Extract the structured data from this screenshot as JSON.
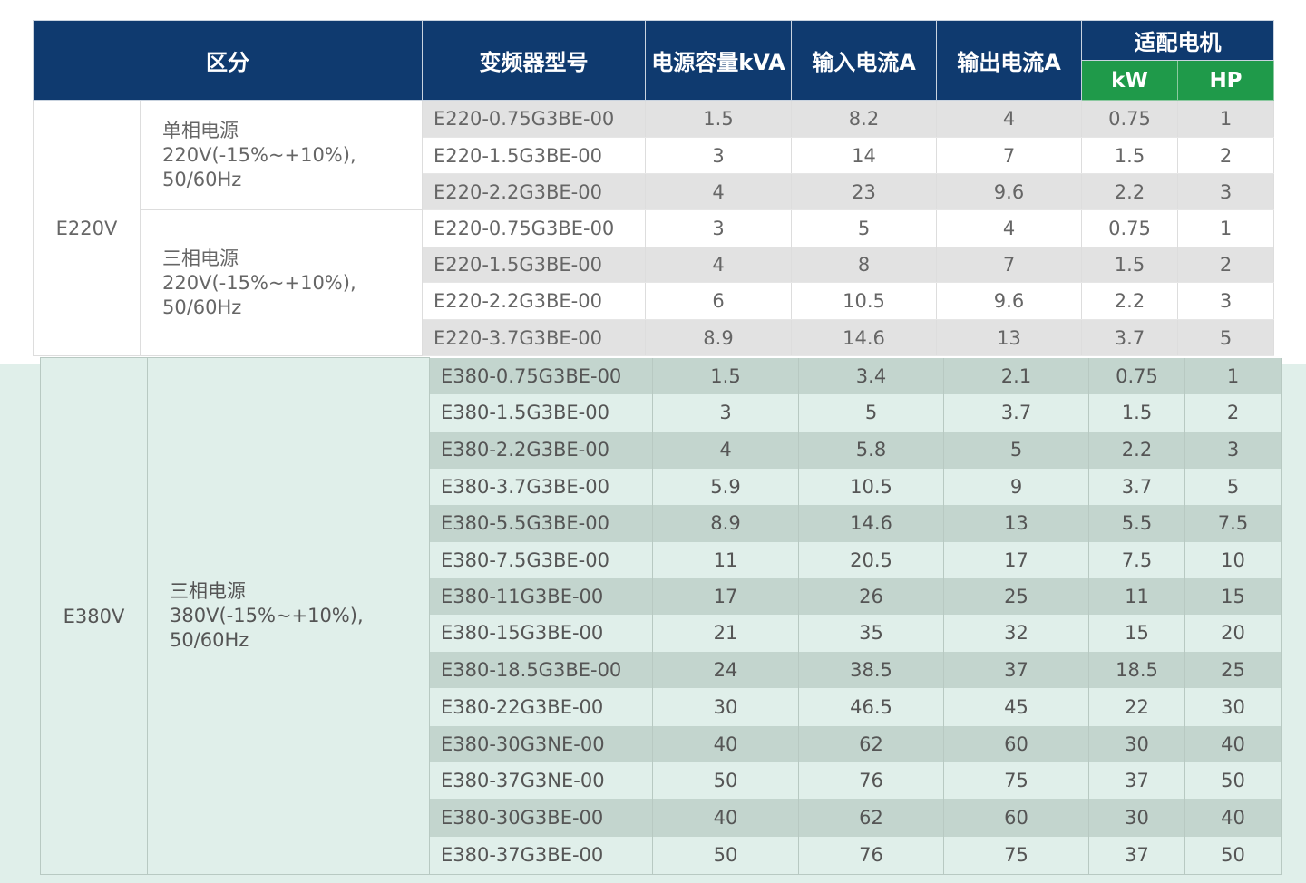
{
  "header": {
    "col_category": "区分",
    "col_model": "变频器型号",
    "col_capacity": "电源容量kVA",
    "col_input": "输入电流A",
    "col_output": "输出电流A",
    "col_motor": "适配电机",
    "col_kw": "kW",
    "col_hp": "HP"
  },
  "groups": [
    {
      "label": "E220V",
      "supplies": [
        {
          "name": "单相电源",
          "spec": "220V(-15%~+10%), 50/60Hz",
          "rows": [
            [
              "E220-0.75G3BE-00",
              "1.5",
              "8.2",
              "4",
              "0.75",
              "1"
            ],
            [
              "E220-1.5G3BE-00",
              "3",
              "14",
              "7",
              "1.5",
              "2"
            ],
            [
              "E220-2.2G3BE-00",
              "4",
              "23",
              "9.6",
              "2.2",
              "3"
            ]
          ]
        },
        {
          "name": "三相电源",
          "spec": "220V(-15%~+10%), 50/60Hz",
          "rows": [
            [
              "E220-0.75G3BE-00",
              "3",
              "5",
              "4",
              "0.75",
              "1"
            ],
            [
              "E220-1.5G3BE-00",
              "4",
              "8",
              "7",
              "1.5",
              "2"
            ],
            [
              "E220-2.2G3BE-00",
              "6",
              "10.5",
              "9.6",
              "2.2",
              "3"
            ],
            [
              "E220-3.7G3BE-00",
              "8.9",
              "14.6",
              "13",
              "3.7",
              "5"
            ]
          ]
        }
      ]
    },
    {
      "label": "E380V",
      "supplies": [
        {
          "name": "三相电源",
          "spec": "380V(-15%~+10%), 50/60Hz",
          "rows": [
            [
              "E380-0.75G3BE-00",
              "1.5",
              "3.4",
              "2.1",
              "0.75",
              "1"
            ],
            [
              "E380-1.5G3BE-00",
              "3",
              "5",
              "3.7",
              "1.5",
              "2"
            ],
            [
              "E380-2.2G3BE-00",
              "4",
              "5.8",
              "5",
              "2.2",
              "3"
            ],
            [
              "E380-3.7G3BE-00",
              "5.9",
              "10.5",
              "9",
              "3.7",
              "5"
            ],
            [
              "E380-5.5G3BE-00",
              "8.9",
              "14.6",
              "13",
              "5.5",
              "7.5"
            ],
            [
              "E380-7.5G3BE-00",
              "11",
              "20.5",
              "17",
              "7.5",
              "10"
            ],
            [
              "E380-11G3BE-00",
              "17",
              "26",
              "25",
              "11",
              "15"
            ],
            [
              "E380-15G3BE-00",
              "21",
              "35",
              "32",
              "15",
              "20"
            ],
            [
              "E380-18.5G3BE-00",
              "24",
              "38.5",
              "37",
              "18.5",
              "25"
            ],
            [
              "E380-22G3BE-00",
              "30",
              "46.5",
              "45",
              "22",
              "30"
            ],
            [
              "E380-30G3NE-00",
              "40",
              "62",
              "60",
              "30",
              "40"
            ],
            [
              "E380-37G3NE-00",
              "50",
              "76",
              "75",
              "37",
              "50"
            ],
            [
              "E380-30G3BE-00",
              "40",
              "62",
              "60",
              "30",
              "40"
            ],
            [
              "E380-37G3BE-00",
              "50",
              "76",
              "75",
              "37",
              "50"
            ]
          ]
        }
      ]
    }
  ]
}
